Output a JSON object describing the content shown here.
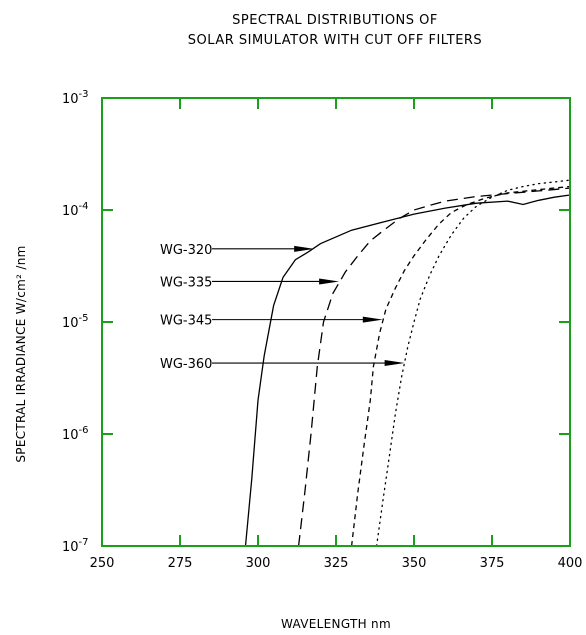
{
  "chart_data": {
    "type": "line",
    "title_lines": [
      "SPECTRAL DISTRIBUTIONS OF",
      "SOLAR SIMULATOR WITH CUT OFF FILTERS"
    ],
    "xlabel": "WAVELENGTH nm",
    "ylabel": "SPECTRAL IRRADIANCE W/cm² /nm",
    "xlim": [
      250,
      400
    ],
    "ylim": [
      1e-07,
      0.001
    ],
    "yscale": "log",
    "x_ticks": [
      250,
      275,
      300,
      325,
      350,
      375,
      400
    ],
    "x_tick_labels": [
      "250",
      "275",
      "300",
      "325",
      "350",
      "375",
      "400"
    ],
    "y_ticks": [
      1e-07,
      1e-06,
      1e-05,
      0.0001,
      0.001
    ],
    "y_tick_labels": [
      {
        "base": "10",
        "exp": "-7"
      },
      {
        "base": "10",
        "exp": "-6"
      },
      {
        "base": "10",
        "exp": "-5"
      },
      {
        "base": "10",
        "exp": "-4"
      },
      {
        "base": "10",
        "exp": "-3"
      }
    ],
    "grid": false,
    "frame_color": "#1aa01a",
    "series": [
      {
        "name": "WG-320",
        "dash": "solid",
        "x": [
          296,
          298,
          300,
          302,
          305,
          308,
          312,
          316,
          320,
          330,
          340,
          350,
          360,
          370,
          380,
          385,
          388,
          390,
          395,
          400
        ],
        "y": [
          1e-07,
          4e-07,
          2e-06,
          5e-06,
          1.4e-05,
          2.5e-05,
          3.6e-05,
          4.2e-05,
          5e-05,
          6.6e-05,
          7.8e-05,
          9.2e-05,
          0.000104,
          0.000115,
          0.00012,
          0.000112,
          0.000118,
          0.000122,
          0.00013,
          0.000136
        ]
      },
      {
        "name": "WG-335",
        "dash": "long-dash",
        "x": [
          313,
          315,
          317,
          319,
          321,
          324,
          328,
          332,
          336,
          340,
          345,
          350,
          355,
          360,
          370,
          380,
          390,
          400
        ],
        "y": [
          1e-07,
          3e-07,
          1e-06,
          4e-06,
          1e-05,
          1.8e-05,
          2.8e-05,
          3.9e-05,
          5.3e-05,
          6.5e-05,
          8.3e-05,
          0.0001,
          0.00011,
          0.00012,
          0.000132,
          0.00014,
          0.000148,
          0.000157
        ]
      },
      {
        "name": "WG-345",
        "dash": "short-dash",
        "x": [
          330,
          332,
          334,
          336,
          337,
          339,
          341,
          344,
          347,
          350,
          354,
          358,
          362,
          367,
          373,
          380,
          390,
          400
        ],
        "y": [
          1e-07,
          3e-07,
          8e-07,
          2e-06,
          4e-06,
          8e-06,
          1.3e-05,
          2e-05,
          2.9e-05,
          3.9e-05,
          5.5e-05,
          7.5e-05,
          9.5e-05,
          0.000112,
          0.000128,
          0.000142,
          0.000152,
          0.000162
        ]
      },
      {
        "name": "WG-360",
        "dash": "dotted",
        "x": [
          338,
          340,
          342,
          344,
          346,
          348,
          350,
          352,
          355,
          358,
          362,
          366,
          370,
          375,
          380,
          385,
          390,
          395,
          400
        ],
        "y": [
          1e-07,
          2.5e-07,
          6e-07,
          1.5e-06,
          3.2e-06,
          6e-06,
          1e-05,
          1.6e-05,
          2.6e-05,
          3.9e-05,
          6e-05,
          8.5e-05,
          0.000108,
          0.00013,
          0.00015,
          0.000162,
          0.000172,
          0.000178,
          0.000185
        ]
      }
    ],
    "annotations": [
      {
        "label": "WG-320",
        "points_to": {
          "x": 318,
          "y": 4.5e-05
        }
      },
      {
        "label": "WG-335",
        "points_to": {
          "x": 326,
          "y": 2.3e-05
        }
      },
      {
        "label": "WG-345",
        "points_to": {
          "x": 340,
          "y": 1.05e-05
        }
      },
      {
        "label": "WG-360",
        "points_to": {
          "x": 347,
          "y": 4.3e-06
        }
      }
    ]
  }
}
